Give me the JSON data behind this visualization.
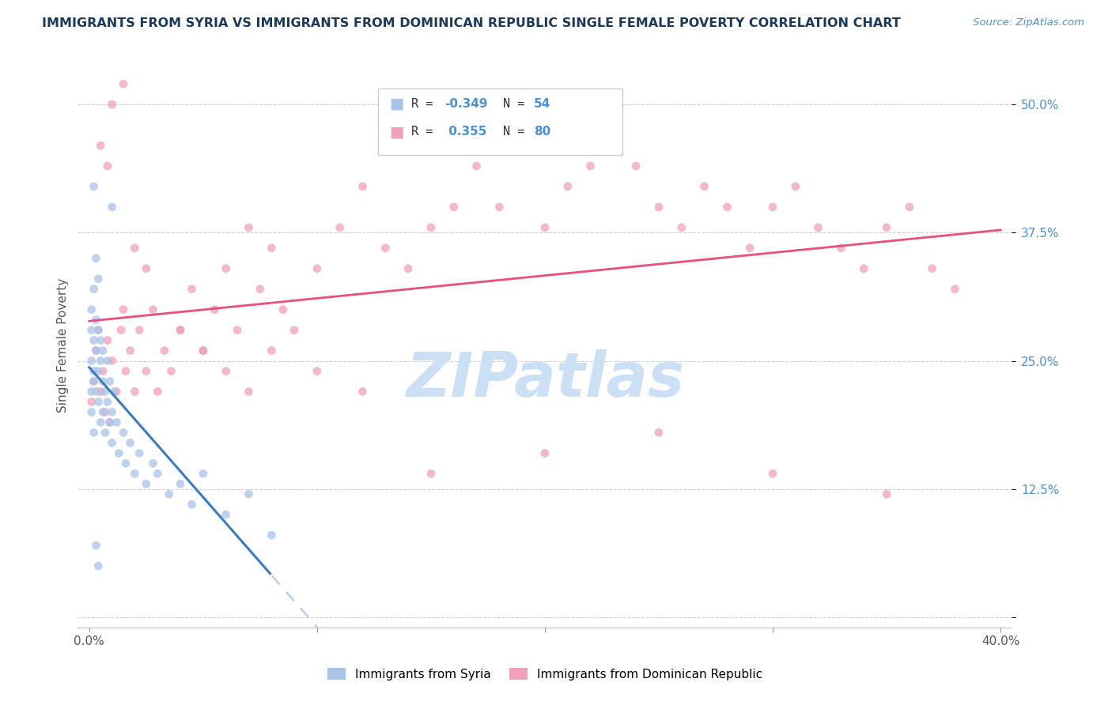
{
  "title": "IMMIGRANTS FROM SYRIA VS IMMIGRANTS FROM DOMINICAN REPUBLIC SINGLE FEMALE POVERTY CORRELATION CHART",
  "source": "Source: ZipAtlas.com",
  "ylabel": "Single Female Poverty",
  "y_ticks": [
    0.0,
    0.125,
    0.25,
    0.375,
    0.5
  ],
  "y_tick_labels": [
    "",
    "12.5%",
    "25.0%",
    "37.5%",
    "50.0%"
  ],
  "R_syria": -0.349,
  "N_syria": 54,
  "R_dr": 0.355,
  "N_dr": 80,
  "color_syria": "#a8c4e8",
  "color_dr": "#f0a0b8",
  "color_syria_line": "#3a7abf",
  "color_dr_line": "#e8507a",
  "color_dashed": "#b8cfe8",
  "watermark_color": "#d0e4f4",
  "title_color": "#1a3a5c",
  "source_color": "#4a90d9",
  "legend_r_color": "#4a90d9",
  "syria_x": [
    0.001,
    0.001,
    0.001,
    0.001,
    0.001,
    0.002,
    0.002,
    0.002,
    0.002,
    0.002,
    0.003,
    0.003,
    0.003,
    0.003,
    0.004,
    0.004,
    0.004,
    0.004,
    0.005,
    0.005,
    0.005,
    0.006,
    0.006,
    0.006,
    0.007,
    0.007,
    0.008,
    0.008,
    0.009,
    0.009,
    0.01,
    0.01,
    0.011,
    0.012,
    0.013,
    0.015,
    0.016,
    0.018,
    0.02,
    0.022,
    0.025,
    0.028,
    0.03,
    0.035,
    0.04,
    0.045,
    0.05,
    0.06,
    0.07,
    0.01,
    0.003,
    0.004,
    0.002,
    0.08
  ],
  "syria_y": [
    0.22,
    0.25,
    0.28,
    0.3,
    0.2,
    0.24,
    0.27,
    0.23,
    0.18,
    0.32,
    0.26,
    0.29,
    0.22,
    0.35,
    0.24,
    0.28,
    0.21,
    0.33,
    0.25,
    0.19,
    0.27,
    0.23,
    0.26,
    0.2,
    0.22,
    0.18,
    0.21,
    0.25,
    0.19,
    0.23,
    0.2,
    0.17,
    0.22,
    0.19,
    0.16,
    0.18,
    0.15,
    0.17,
    0.14,
    0.16,
    0.13,
    0.15,
    0.14,
    0.12,
    0.13,
    0.11,
    0.14,
    0.1,
    0.12,
    0.4,
    0.07,
    0.05,
    0.42,
    0.08
  ],
  "dr_x": [
    0.001,
    0.002,
    0.003,
    0.004,
    0.005,
    0.006,
    0.007,
    0.008,
    0.009,
    0.01,
    0.012,
    0.014,
    0.015,
    0.016,
    0.018,
    0.02,
    0.022,
    0.025,
    0.028,
    0.03,
    0.033,
    0.036,
    0.04,
    0.045,
    0.05,
    0.055,
    0.06,
    0.065,
    0.07,
    0.075,
    0.08,
    0.085,
    0.09,
    0.1,
    0.11,
    0.12,
    0.13,
    0.14,
    0.15,
    0.16,
    0.17,
    0.18,
    0.19,
    0.2,
    0.21,
    0.22,
    0.23,
    0.24,
    0.25,
    0.26,
    0.27,
    0.28,
    0.29,
    0.3,
    0.31,
    0.32,
    0.33,
    0.34,
    0.35,
    0.36,
    0.37,
    0.38,
    0.01,
    0.015,
    0.005,
    0.008,
    0.02,
    0.025,
    0.04,
    0.05,
    0.06,
    0.07,
    0.08,
    0.1,
    0.12,
    0.15,
    0.2,
    0.25,
    0.3,
    0.35
  ],
  "dr_y": [
    0.21,
    0.23,
    0.26,
    0.28,
    0.22,
    0.24,
    0.2,
    0.27,
    0.19,
    0.25,
    0.22,
    0.28,
    0.3,
    0.24,
    0.26,
    0.22,
    0.28,
    0.24,
    0.3,
    0.22,
    0.26,
    0.24,
    0.28,
    0.32,
    0.26,
    0.3,
    0.34,
    0.28,
    0.38,
    0.32,
    0.36,
    0.3,
    0.28,
    0.34,
    0.38,
    0.42,
    0.36,
    0.34,
    0.38,
    0.4,
    0.44,
    0.4,
    0.46,
    0.38,
    0.42,
    0.44,
    0.48,
    0.44,
    0.4,
    0.38,
    0.42,
    0.4,
    0.36,
    0.4,
    0.42,
    0.38,
    0.36,
    0.34,
    0.38,
    0.4,
    0.34,
    0.32,
    0.5,
    0.52,
    0.46,
    0.44,
    0.36,
    0.34,
    0.28,
    0.26,
    0.24,
    0.22,
    0.26,
    0.24,
    0.22,
    0.14,
    0.16,
    0.18,
    0.14,
    0.12
  ],
  "xlim": [
    0.0,
    0.4
  ],
  "ylim": [
    -0.01,
    0.54
  ]
}
